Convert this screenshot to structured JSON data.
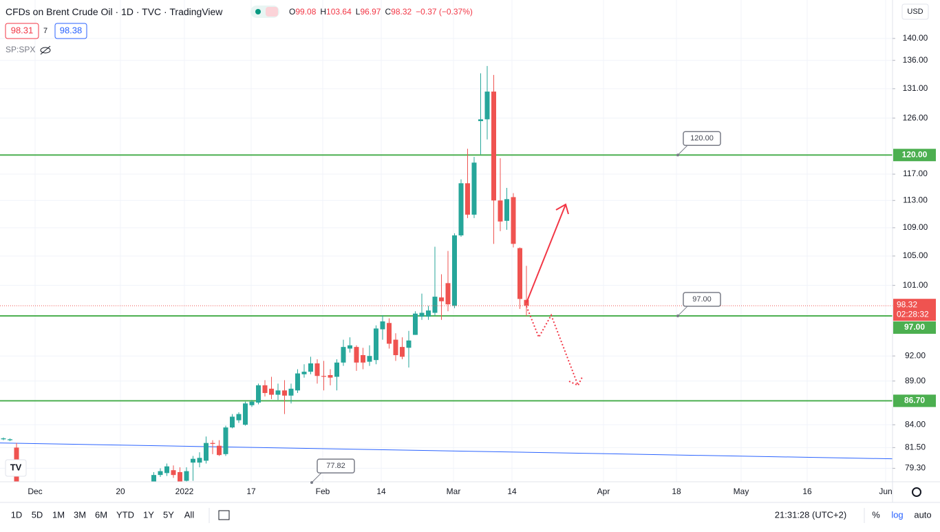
{
  "header": {
    "symbol": "CFDs on Brent Crude Oil",
    "interval": "1D",
    "exchange": "TVC",
    "source": "TradingView",
    "ohlc": [
      {
        "key": "O",
        "value": "99.08"
      },
      {
        "key": "H",
        "value": "103.64"
      },
      {
        "key": "L",
        "value": "96.97"
      },
      {
        "key": "C",
        "value": "98.32"
      }
    ],
    "change": "−0.37 (−0.37%)"
  },
  "trade": {
    "sell": "98.31",
    "spread": "7",
    "buy": "98.38"
  },
  "overlay": "SP:SPX",
  "currency": "USD",
  "chart_data": {
    "type": "candlestick",
    "open": [
      82.4,
      82.3,
      81.5,
      null,
      null,
      null,
      null,
      null,
      null,
      null,
      null,
      null,
      null,
      null,
      null,
      null,
      null,
      null,
      null,
      null,
      null,
      null,
      null,
      77.8,
      78.6,
      78.8,
      79.1,
      78.9,
      78.0,
      79.9,
      79.9,
      80.1,
      82.0,
      81.7,
      80.8,
      83.7,
      84.5,
      84.0,
      86.2,
      86.5,
      88.5,
      88.1,
      87.4,
      87.9,
      87.3,
      87.9,
      89.8,
      90.1,
      91.1,
      89.6,
      89.7,
      89.5,
      91.2,
      92.9,
      93.1,
      92.1,
      91.3,
      91.5,
      95.3,
      96.1,
      94.0,
      93.1,
      93.0,
      94.6,
      96.9,
      96.9,
      97.4,
      99.4,
      101.3,
      98.3,
      107.9,
      115.6,
      110.9,
      125.5,
      125.8,
      130.5,
      113.0,
      110.0,
      113.5,
      106.1,
      99.08
    ],
    "high": [
      82.6,
      82.5,
      82.0,
      null,
      null,
      null,
      null,
      null,
      null,
      null,
      null,
      null,
      null,
      null,
      null,
      null,
      null,
      null,
      null,
      null,
      null,
      null,
      null,
      78.9,
      79.3,
      79.8,
      79.6,
      79.4,
      79.4,
      80.6,
      81.0,
      82.7,
      82.3,
      82.3,
      83.9,
      85.2,
      85.4,
      86.6,
      86.8,
      88.7,
      89.1,
      89.5,
      88.7,
      89.1,
      88.7,
      90.4,
      91.0,
      91.9,
      91.6,
      91.4,
      90.4,
      91.6,
      94.0,
      94.3,
      93.3,
      93.0,
      93.3,
      95.8,
      97.1,
      96.7,
      94.8,
      94.3,
      95.1,
      97.6,
      99.9,
      98.3,
      106.3,
      102.5,
      105.7,
      108.2,
      116.2,
      121.0,
      119.7,
      133.7,
      135.0,
      133.4,
      119.5,
      114.9,
      114.1,
      106.2,
      103.64
    ],
    "low": [
      82.3,
      82.2,
      77.5,
      null,
      null,
      null,
      null,
      null,
      null,
      null,
      null,
      null,
      null,
      null,
      null,
      null,
      null,
      null,
      null,
      null,
      null,
      null,
      null,
      77.5,
      78.4,
      78.5,
      78.3,
      77.7,
      77.8,
      78.0,
      79.4,
      79.8,
      80.8,
      80.6,
      80.6,
      83.6,
      84.2,
      83.9,
      86.0,
      86.3,
      87.2,
      86.9,
      86.8,
      85.2,
      86.4,
      87.6,
      89.4,
      89.8,
      88.7,
      87.9,
      88.5,
      87.9,
      90.8,
      92.4,
      90.2,
      90.4,
      90.8,
      91.0,
      94.0,
      92.9,
      91.4,
      91.6,
      90.6,
      94.6,
      96.5,
      96.5,
      97.0,
      96.5,
      97.6,
      98.0,
      107.7,
      110.4,
      110.4,
      120.1,
      122.5,
      106.7,
      108.5,
      108.7,
      106.2,
      97.9,
      96.97
    ],
    "close": [
      82.5,
      82.4,
      77.9,
      null,
      null,
      null,
      null,
      null,
      null,
      null,
      null,
      null,
      null,
      null,
      null,
      null,
      null,
      null,
      null,
      null,
      null,
      null,
      null,
      78.6,
      79.0,
      79.5,
      78.6,
      77.9,
      79.0,
      80.3,
      80.4,
      82.0,
      81.9,
      80.7,
      83.7,
      84.9,
      85.2,
      86.4,
      86.6,
      88.5,
      87.6,
      87.4,
      87.9,
      87.3,
      88.1,
      89.9,
      90.1,
      91.1,
      89.6,
      89.5,
      89.4,
      91.2,
      93.1,
      93.3,
      91.2,
      91.2,
      92.0,
      95.4,
      96.3,
      93.5,
      92.1,
      91.9,
      93.9,
      97.3,
      97.4,
      97.7,
      99.5,
      98.9,
      98.5,
      107.9,
      115.6,
      110.9,
      118.8,
      125.8,
      130.5,
      113.0,
      109.9,
      113.2,
      106.7,
      99.2,
      98.32
    ],
    "up_color": "#26a69a",
    "down_color": "#ef5350",
    "log_scale": true,
    "grid": true,
    "ylim": [
      77.9,
      147.3
    ],
    "yticks": [
      {
        "value": 140,
        "label": "140.00"
      },
      {
        "value": 136,
        "label": "136.00"
      },
      {
        "value": 131,
        "label": "131.00"
      },
      {
        "value": 126,
        "label": "126.00"
      },
      {
        "value": 117,
        "label": "117.00"
      },
      {
        "value": 113,
        "label": "113.00"
      },
      {
        "value": 109,
        "label": "109.00"
      },
      {
        "value": 105,
        "label": "105.00"
      },
      {
        "value": 101,
        "label": "101.00"
      },
      {
        "value": 92,
        "label": "92.00"
      },
      {
        "value": 89,
        "label": "89.00"
      },
      {
        "value": 84,
        "label": "84.00"
      },
      {
        "value": 81.5,
        "label": "81.50"
      },
      {
        "value": 79.3,
        "label": "79.30"
      }
    ],
    "xticks": [
      "Dec",
      "20",
      "2022",
      "17",
      "Feb",
      "14",
      "Mar",
      "14",
      "Apr",
      "18",
      "May",
      "16",
      "Jun"
    ],
    "last_price": {
      "value": 98.32,
      "countdown": "02:28:32"
    },
    "levels": [
      {
        "value": 120,
        "label": "120.00"
      },
      {
        "value": 97,
        "label": "97.00"
      },
      {
        "value": 86.7,
        "label": "86.70"
      }
    ],
    "level_color": "#4caf50",
    "callouts": [
      {
        "value": 120,
        "label": "120.00"
      },
      {
        "value": 97,
        "label": "97.00"
      },
      {
        "value": 77.82,
        "label": "77.82"
      }
    ],
    "trendline": {
      "values": [
        82.0,
        80.3
      ],
      "color": "#2962ff"
    }
  },
  "ranges": [
    "1D",
    "5D",
    "1M",
    "3M",
    "6M",
    "YTD",
    "1Y",
    "5Y",
    "All"
  ],
  "clock": "21:31:28 (UTC+2)",
  "scale_buttons": [
    "%",
    "log",
    "auto"
  ]
}
